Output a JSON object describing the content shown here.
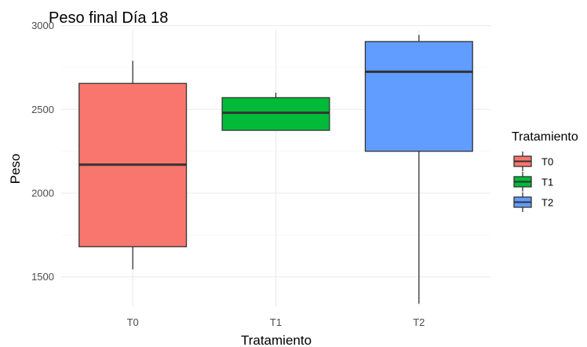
{
  "chart_data": {
    "type": "boxplot",
    "title": "Peso final Día 18",
    "xlabel": "Tratamiento",
    "ylabel": "Peso",
    "ylim": [
      1325,
      2975
    ],
    "yticks": [
      1500,
      2000,
      2500,
      3000
    ],
    "grid": true,
    "legend": {
      "title": "Tratamiento",
      "position": "right"
    },
    "categories": [
      "T0",
      "T1",
      "T2"
    ],
    "boxes": [
      {
        "name": "T0",
        "color": "#F8766D",
        "min": 1545,
        "q1": 1680,
        "median": 2170,
        "q3": 2655,
        "max": 2790
      },
      {
        "name": "T1",
        "color": "#00BA38",
        "min": 2375,
        "q1": 2375,
        "median": 2480,
        "q3": 2570,
        "max": 2600
      },
      {
        "name": "T2",
        "color": "#619CFF",
        "min": 1340,
        "q1": 2250,
        "median": 2725,
        "q3": 2905,
        "max": 2945
      }
    ]
  }
}
